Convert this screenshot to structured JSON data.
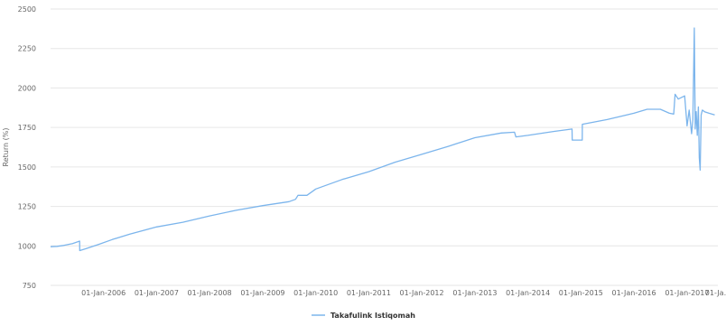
{
  "chart_data": {
    "type": "line",
    "title": "",
    "xlabel": "",
    "ylabel": "Return (%)",
    "ylim": [
      750,
      2500
    ],
    "xlim": [
      "2005-01-01",
      "2017-08-01"
    ],
    "grid": "horizontal",
    "legend_position": "bottom-center",
    "y_ticks": [
      "750",
      "1000",
      "1250",
      "1500",
      "1750",
      "2000",
      "2250",
      "2500"
    ],
    "x_ticks": [
      {
        "date": "2006-01-01",
        "label": "01-Jan-2006"
      },
      {
        "date": "2007-01-01",
        "label": "01-Jan-2007"
      },
      {
        "date": "2008-01-01",
        "label": "01-Jan-2008"
      },
      {
        "date": "2009-01-01",
        "label": "01-Jan-2009"
      },
      {
        "date": "2010-01-01",
        "label": "01-Jan-2010"
      },
      {
        "date": "2011-01-01",
        "label": "01-Jan-2011"
      },
      {
        "date": "2012-01-01",
        "label": "01-Jan-2012"
      },
      {
        "date": "2013-01-01",
        "label": "01-Jan-2013"
      },
      {
        "date": "2014-01-01",
        "label": "01-Jan-2014"
      },
      {
        "date": "2015-01-01",
        "label": "01-Jan-2015"
      },
      {
        "date": "2016-01-01",
        "label": "01-Jan-2016"
      },
      {
        "date": "2017-01-01",
        "label": "01-Jan-2017"
      },
      {
        "date": "2017-08-01",
        "label": "01-Ja..."
      }
    ],
    "series": [
      {
        "name": "Takafulink Istiqomah",
        "color": "#7cb5ec",
        "points": [
          [
            "2005-01-01",
            995
          ],
          [
            "2005-02-15",
            997
          ],
          [
            "2005-04-01",
            1003
          ],
          [
            "2005-06-01",
            1015
          ],
          [
            "2005-07-20",
            1030
          ],
          [
            "2005-07-21",
            970
          ],
          [
            "2005-09-01",
            982
          ],
          [
            "2005-12-01",
            1010
          ],
          [
            "2006-03-01",
            1040
          ],
          [
            "2006-07-01",
            1075
          ],
          [
            "2007-01-01",
            1120
          ],
          [
            "2007-07-01",
            1150
          ],
          [
            "2008-01-01",
            1190
          ],
          [
            "2008-07-01",
            1225
          ],
          [
            "2009-01-01",
            1255
          ],
          [
            "2009-07-01",
            1280
          ],
          [
            "2009-08-15",
            1295
          ],
          [
            "2009-09-01",
            1320
          ],
          [
            "2009-11-01",
            1320
          ],
          [
            "2010-01-01",
            1360
          ],
          [
            "2010-07-01",
            1420
          ],
          [
            "2011-01-01",
            1470
          ],
          [
            "2011-07-01",
            1530
          ],
          [
            "2012-01-01",
            1580
          ],
          [
            "2012-07-01",
            1630
          ],
          [
            "2013-01-01",
            1685
          ],
          [
            "2013-07-01",
            1715
          ],
          [
            "2013-10-01",
            1720
          ],
          [
            "2013-10-10",
            1690
          ],
          [
            "2014-01-01",
            1700
          ],
          [
            "2014-07-01",
            1725
          ],
          [
            "2014-11-01",
            1740
          ],
          [
            "2014-11-02",
            1670
          ],
          [
            "2015-01-10",
            1670
          ],
          [
            "2015-01-11",
            1770
          ],
          [
            "2015-07-01",
            1800
          ],
          [
            "2016-01-01",
            1840
          ],
          [
            "2016-04-01",
            1865
          ],
          [
            "2016-07-01",
            1865
          ],
          [
            "2016-09-01",
            1840
          ],
          [
            "2016-10-01",
            1835
          ],
          [
            "2016-10-10",
            1960
          ],
          [
            "2016-11-01",
            1930
          ],
          [
            "2016-12-15",
            1950
          ],
          [
            "2017-01-01",
            1760
          ],
          [
            "2017-01-15",
            1860
          ],
          [
            "2017-02-01",
            1710
          ],
          [
            "2017-02-10",
            1800
          ],
          [
            "2017-02-20",
            2380
          ],
          [
            "2017-02-26",
            1740
          ],
          [
            "2017-03-05",
            1850
          ],
          [
            "2017-03-12",
            1700
          ],
          [
            "2017-03-20",
            1880
          ],
          [
            "2017-03-26",
            1560
          ],
          [
            "2017-04-01",
            1480
          ],
          [
            "2017-04-08",
            1830
          ],
          [
            "2017-04-16",
            1860
          ],
          [
            "2017-05-01",
            1850
          ],
          [
            "2017-06-01",
            1840
          ],
          [
            "2017-07-10",
            1830
          ]
        ]
      }
    ]
  }
}
